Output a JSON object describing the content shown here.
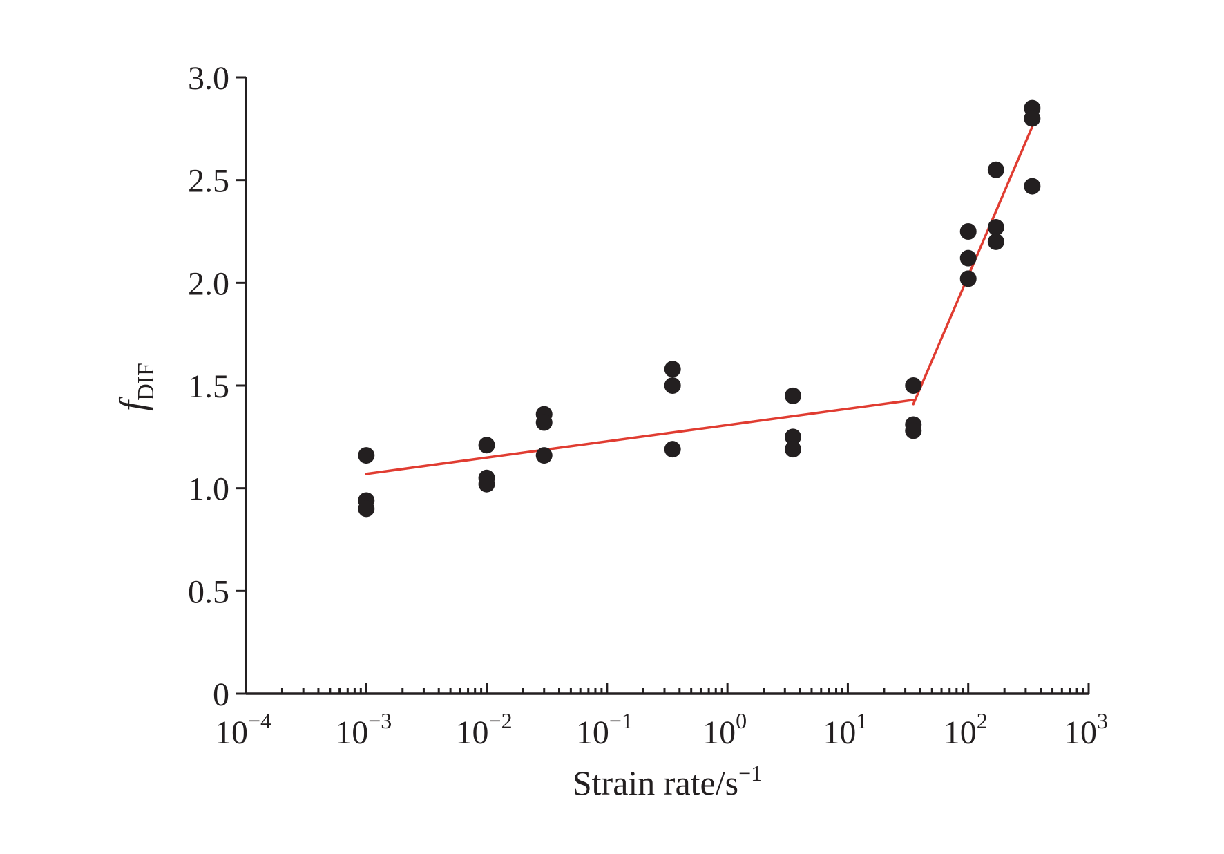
{
  "chart_data": {
    "type": "scatter",
    "title": "",
    "xlabel": {
      "main": "Strain rate/s",
      "sup": "−1"
    },
    "ylabel": {
      "main": "f",
      "sub": "DIF"
    },
    "x_scale": "log",
    "xlim": [
      0.0001,
      1000
    ],
    "ylim": [
      0,
      3.0
    ],
    "x_ticks": [
      {
        "value": 0.0001,
        "base": "10",
        "exp": "−4"
      },
      {
        "value": 0.001,
        "base": "10",
        "exp": "−3"
      },
      {
        "value": 0.01,
        "base": "10",
        "exp": "−2"
      },
      {
        "value": 0.1,
        "base": "10",
        "exp": "−1"
      },
      {
        "value": 1,
        "base": "10",
        "exp": "0"
      },
      {
        "value": 10,
        "base": "10",
        "exp": "1"
      },
      {
        "value": 100,
        "base": "10",
        "exp": "2"
      },
      {
        "value": 1000,
        "base": "10",
        "exp": "3"
      }
    ],
    "y_ticks": [
      {
        "value": 0,
        "label": "0"
      },
      {
        "value": 0.5,
        "label": "0.5"
      },
      {
        "value": 1.0,
        "label": "1.0"
      },
      {
        "value": 1.5,
        "label": "1.5"
      },
      {
        "value": 2.0,
        "label": "2.0"
      },
      {
        "value": 2.5,
        "label": "2.5"
      },
      {
        "value": 3.0,
        "label": "3.0"
      }
    ],
    "grid": false,
    "legend": "none",
    "marker_color": "#231f20",
    "fit_color": "#e03c31",
    "series": [
      {
        "kind": "points",
        "points": [
          {
            "x": 0.001,
            "y": 1.16
          },
          {
            "x": 0.001,
            "y": 0.94
          },
          {
            "x": 0.001,
            "y": 0.9
          },
          {
            "x": 0.01,
            "y": 1.21
          },
          {
            "x": 0.01,
            "y": 1.05
          },
          {
            "x": 0.01,
            "y": 1.02
          },
          {
            "x": 0.03,
            "y": 1.36
          },
          {
            "x": 0.03,
            "y": 1.32
          },
          {
            "x": 0.03,
            "y": 1.16
          },
          {
            "x": 0.35,
            "y": 1.58
          },
          {
            "x": 0.35,
            "y": 1.5
          },
          {
            "x": 0.35,
            "y": 1.19
          },
          {
            "x": 3.5,
            "y": 1.45
          },
          {
            "x": 3.5,
            "y": 1.25
          },
          {
            "x": 3.5,
            "y": 1.19
          },
          {
            "x": 35,
            "y": 1.5
          },
          {
            "x": 35,
            "y": 1.31
          },
          {
            "x": 35,
            "y": 1.28
          },
          {
            "x": 100,
            "y": 2.25
          },
          {
            "x": 100,
            "y": 2.12
          },
          {
            "x": 100,
            "y": 2.02
          },
          {
            "x": 170,
            "y": 2.55
          },
          {
            "x": 170,
            "y": 2.27
          },
          {
            "x": 170,
            "y": 2.2
          },
          {
            "x": 340,
            "y": 2.85
          },
          {
            "x": 340,
            "y": 2.8
          },
          {
            "x": 340,
            "y": 2.47
          }
        ]
      },
      {
        "kind": "line",
        "segments": [
          {
            "x": [
              0.001,
              35
            ],
            "y": [
              1.07,
              1.43
            ]
          },
          {
            "x": [
              35,
              340
            ],
            "y": [
              1.41,
              2.76
            ]
          }
        ]
      }
    ]
  }
}
